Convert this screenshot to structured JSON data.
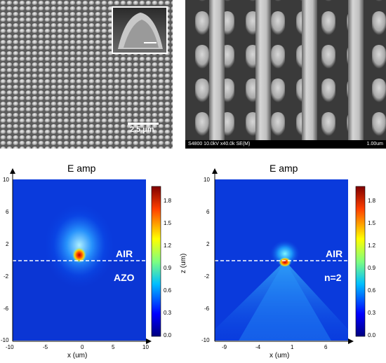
{
  "sem_left": {
    "scale_label": "2.5 µm"
  },
  "sem_right": {
    "info_left": "S4800 10.0kV x40.0k SE(M)",
    "info_right": "1.00um"
  },
  "plots": [
    {
      "title": "E amp",
      "upper_label": "AIR",
      "lower_label": "AZO",
      "x_ticks": [
        "-10",
        "-5",
        "0",
        "5",
        "10"
      ],
      "y_ticks": [
        "10",
        "6",
        "2",
        "-2",
        "-6",
        "-10"
      ],
      "xlabel": "x (um)",
      "colorbar_ticks": [
        "1.8",
        "1.5",
        "1.2",
        "0.9",
        "0.6",
        "0.3",
        "0.0"
      ]
    },
    {
      "title": "E amp",
      "upper_label": "AIR",
      "lower_label": "n=2",
      "x_ticks": [
        "-9",
        "-4",
        "1",
        "6"
      ],
      "y_ticks": [
        "10",
        "6",
        "2",
        "-2",
        "-6",
        "-10"
      ],
      "xlabel": "x (um)",
      "ylabel": "z (um)",
      "colorbar_ticks": [
        "1.8",
        "1.5",
        "1.2",
        "0.9",
        "0.6",
        "0.3",
        "0.0"
      ]
    }
  ]
}
